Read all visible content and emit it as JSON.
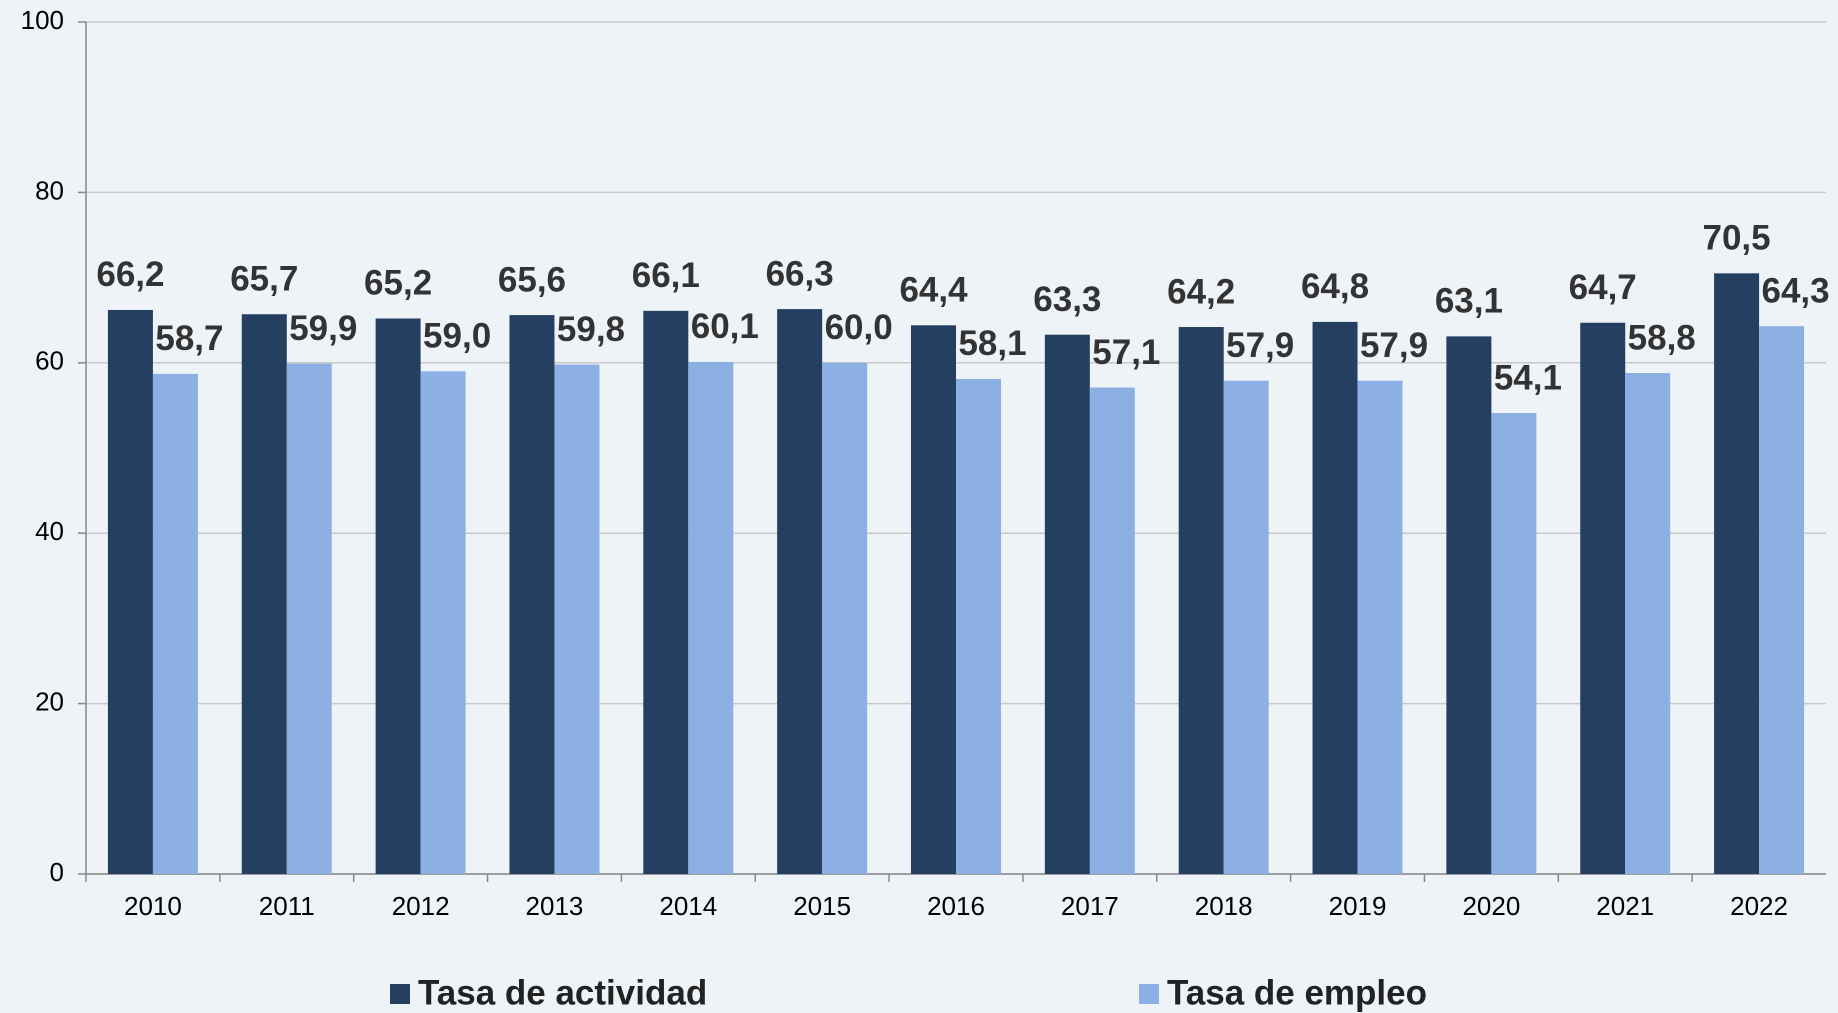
{
  "chart_data": {
    "type": "bar",
    "categories": [
      "2010",
      "2011",
      "2012",
      "2013",
      "2014",
      "2015",
      "2016",
      "2017",
      "2018",
      "2019",
      "2020",
      "2021",
      "2022"
    ],
    "series": [
      {
        "name": "Tasa de actividad",
        "color": "#243f60",
        "values": [
          66.2,
          65.7,
          65.2,
          65.6,
          66.1,
          66.3,
          64.4,
          63.3,
          64.2,
          64.8,
          63.1,
          64.7,
          70.5
        ],
        "value_labels": [
          "66,2",
          "65,7",
          "65,2",
          "65,6",
          "66,1",
          "66,3",
          "64,4",
          "63,3",
          "64,2",
          "64,8",
          "63,1",
          "64,7",
          "70,5"
        ]
      },
      {
        "name": "Tasa de empleo",
        "color": "#8db0e4",
        "values": [
          58.7,
          59.9,
          59.0,
          59.8,
          60.1,
          60.0,
          58.1,
          57.1,
          57.9,
          57.9,
          54.1,
          58.8,
          64.3
        ],
        "value_labels": [
          "58,7",
          "59,9",
          "59,0",
          "59,8",
          "60,1",
          "60,0",
          "58,1",
          "57,1",
          "57,9",
          "57,9",
          "54,1",
          "58,8",
          "64,3"
        ]
      }
    ],
    "ylim": [
      0,
      100
    ],
    "yticks": [
      0,
      20,
      40,
      60,
      80,
      100
    ],
    "grid": true,
    "legend": "bottom"
  }
}
